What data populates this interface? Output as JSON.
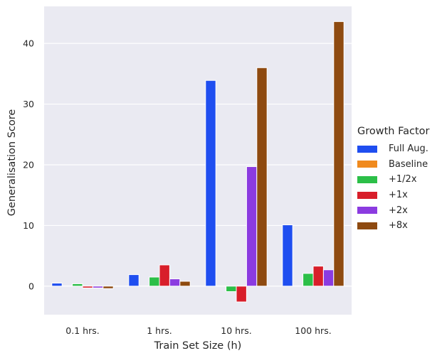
{
  "chart_data": {
    "type": "bar",
    "xlabel": "Train Set Size (h)",
    "ylabel": "Generalisation Score",
    "categories": [
      "0.1 hrs.",
      "1 hrs.",
      "10 hrs.",
      "100 hrs."
    ],
    "ylim": [
      -4.7,
      46.1
    ],
    "yticks": [
      0,
      10,
      20,
      30,
      40
    ],
    "grid": true,
    "legend_title": "Growth Factor",
    "legend_position": "right",
    "series": [
      {
        "name": "Full Aug.",
        "color": "#1f4ef0",
        "values": [
          0.5,
          1.9,
          33.9,
          10.1
        ]
      },
      {
        "name": "Baseline",
        "color": "#f08a1e",
        "values": [
          0.0,
          0.0,
          0.0,
          0.0
        ]
      },
      {
        "name": "+1/2x",
        "color": "#2cbf48",
        "values": [
          0.4,
          1.5,
          -0.9,
          2.1
        ]
      },
      {
        "name": "+1x",
        "color": "#d81e2a",
        "values": [
          -0.3,
          3.5,
          -2.6,
          3.3
        ]
      },
      {
        "name": "+2x",
        "color": "#8b3be0",
        "values": [
          -0.3,
          1.2,
          19.7,
          2.7
        ]
      },
      {
        "name": "+8x",
        "color": "#8e4a10",
        "values": [
          -0.4,
          0.8,
          36.0,
          43.6
        ]
      }
    ]
  }
}
